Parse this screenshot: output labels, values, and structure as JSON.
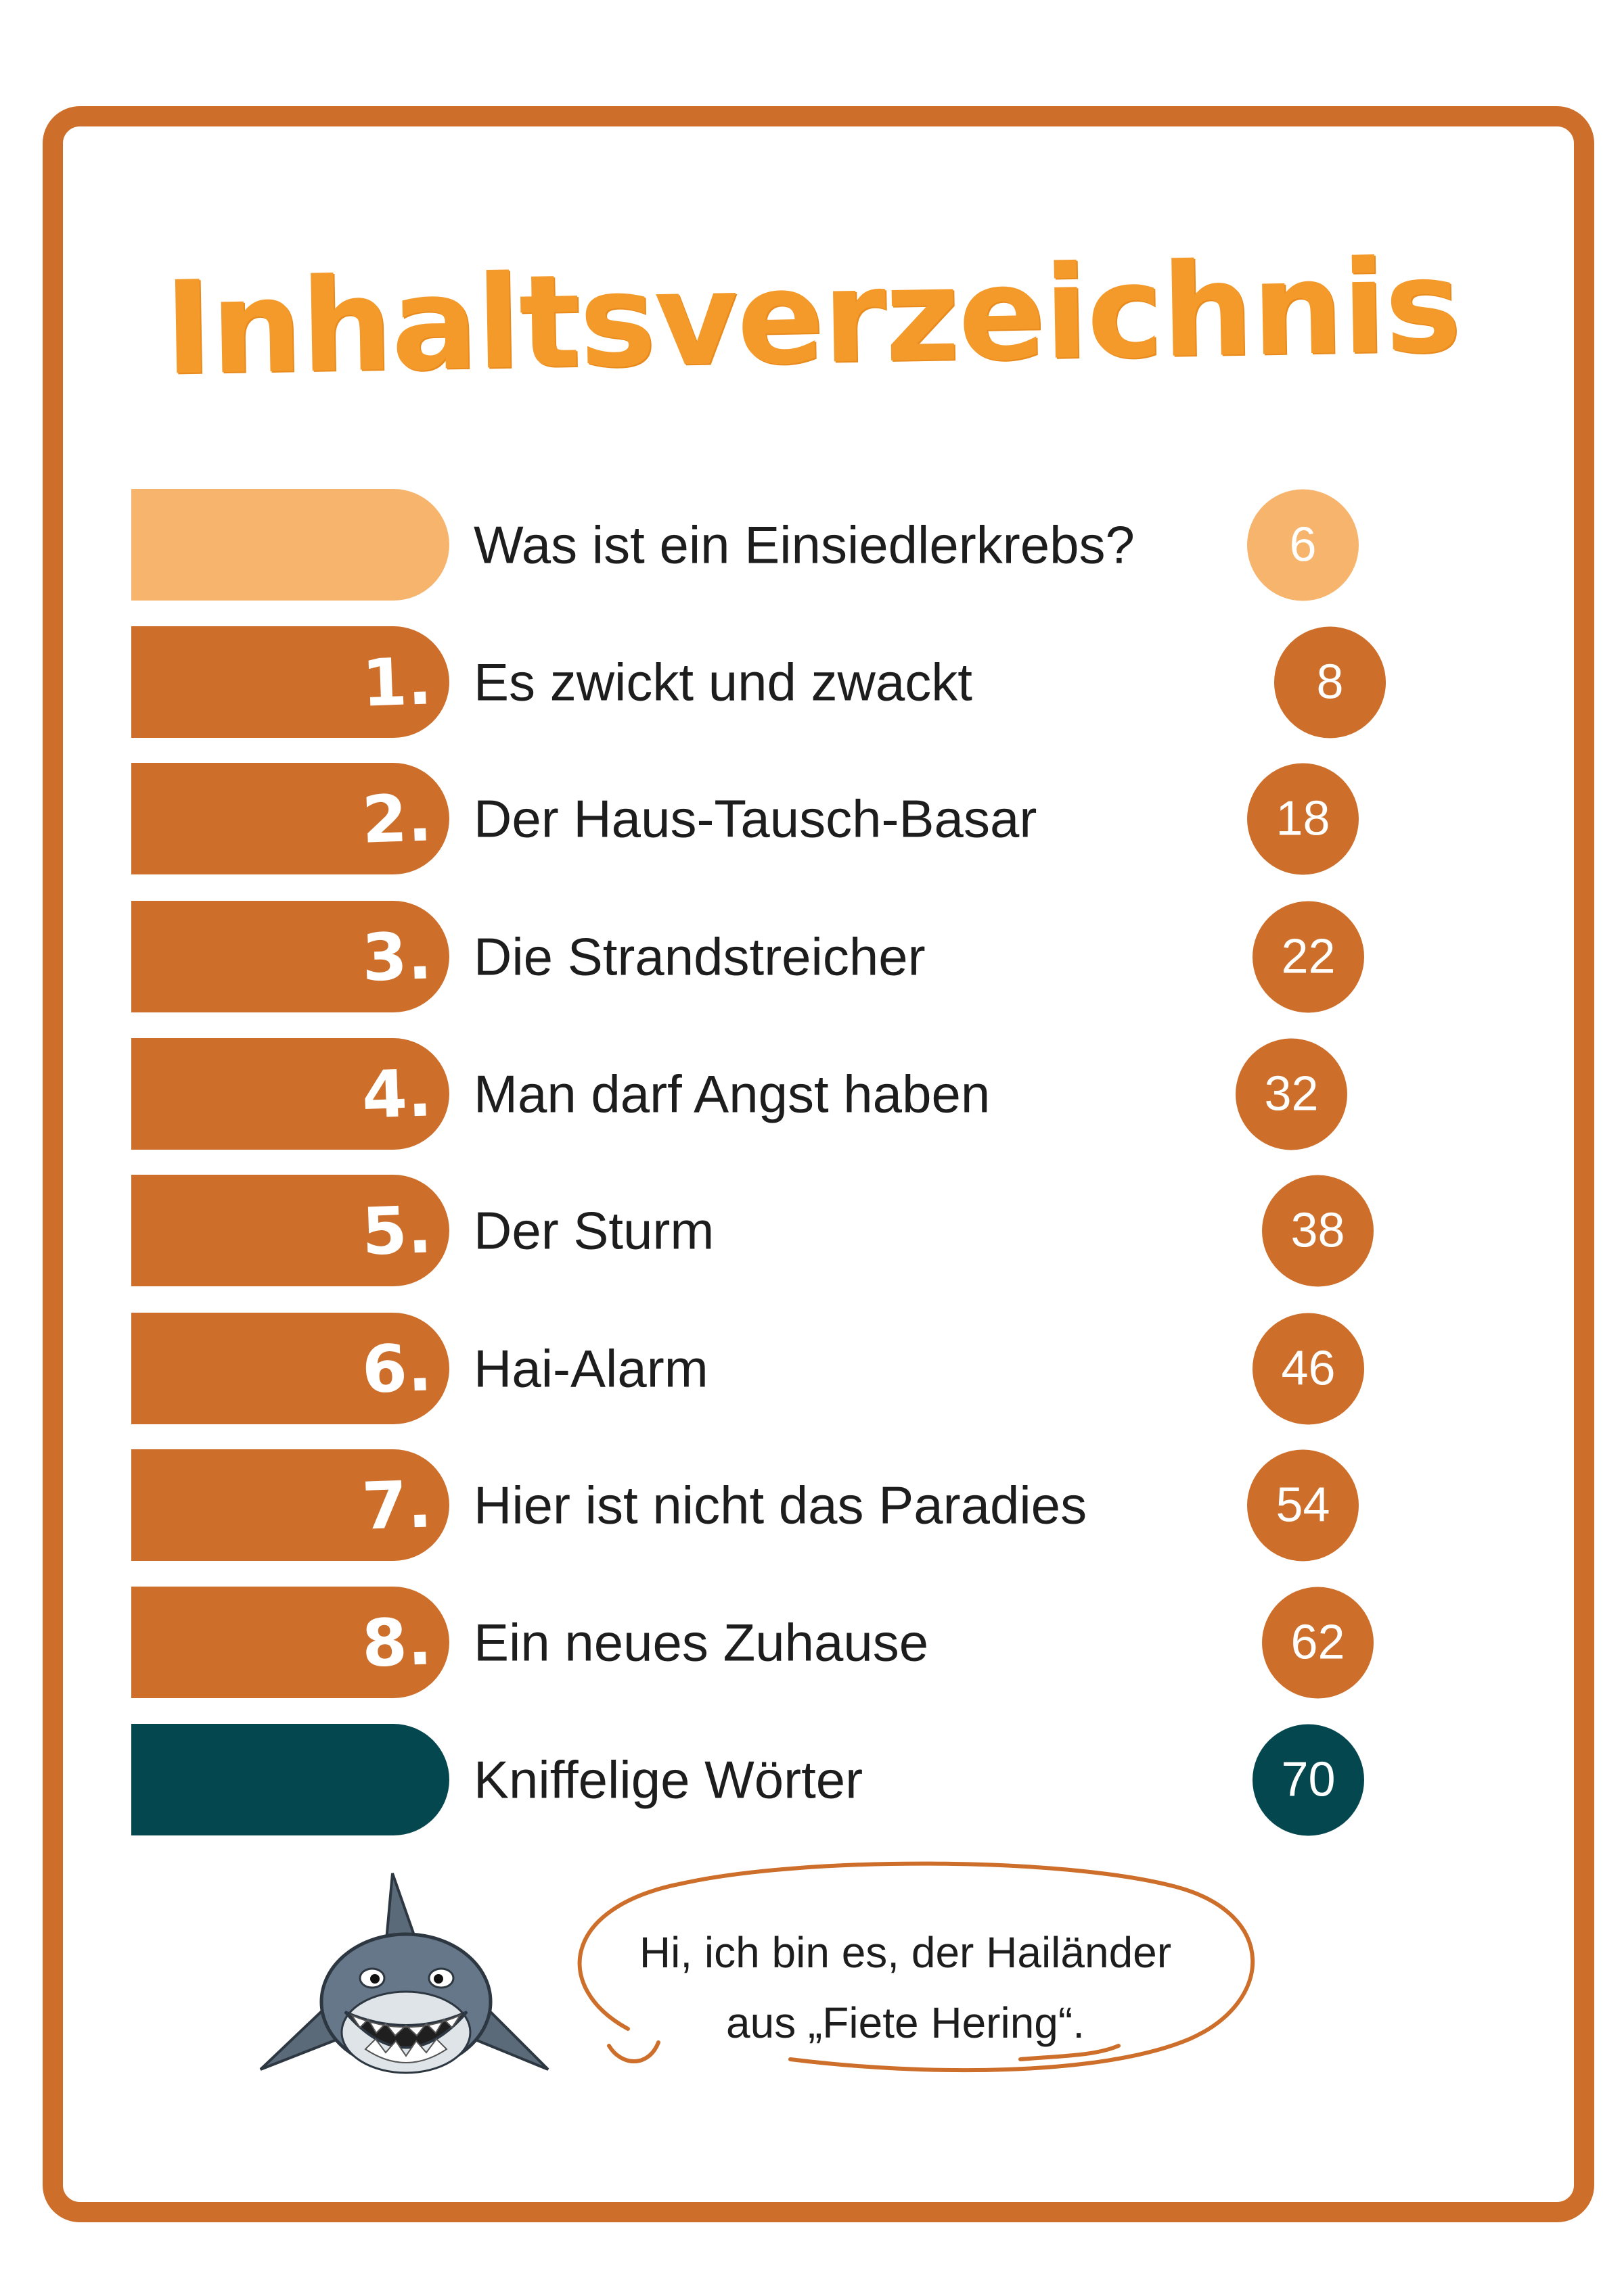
{
  "title": "Inhaltsverzeichnis",
  "toc": [
    {
      "number": "",
      "title": "Was ist ein Einsiedlerkrebs?",
      "page": "6",
      "kind": "intro"
    },
    {
      "number": "1.",
      "title": "Es zwickt und zwackt",
      "page": "8",
      "kind": "chapter"
    },
    {
      "number": "2.",
      "title": "Der Haus-Tausch-Basar",
      "page": "18",
      "kind": "chapter"
    },
    {
      "number": "3.",
      "title": "Die Strandstreicher",
      "page": "22",
      "kind": "chapter"
    },
    {
      "number": "4.",
      "title": "Man darf Angst haben",
      "page": "32",
      "kind": "chapter"
    },
    {
      "number": "5.",
      "title": "Der Sturm",
      "page": "38",
      "kind": "chapter"
    },
    {
      "number": "6.",
      "title": "Hai-Alarm",
      "page": "46",
      "kind": "chapter"
    },
    {
      "number": "7.",
      "title": "Hier ist nicht das Paradies",
      "page": "54",
      "kind": "chapter"
    },
    {
      "number": "8.",
      "title": "Ein neues Zuhause",
      "page": "62",
      "kind": "chapter"
    },
    {
      "number": "",
      "title": "Kniffelige Wörter",
      "page": "70",
      "kind": "glossary"
    }
  ],
  "speech_bubble": {
    "line1": "Hi, ich bin es, der Hailänder",
    "line2": "aus „Fiete Hering“."
  },
  "colors": {
    "frame": "#cd6e2a",
    "title": "#f39a2a",
    "chapter": "#cd6e2a",
    "intro": "#f6b46c",
    "glossary": "#05474f"
  }
}
